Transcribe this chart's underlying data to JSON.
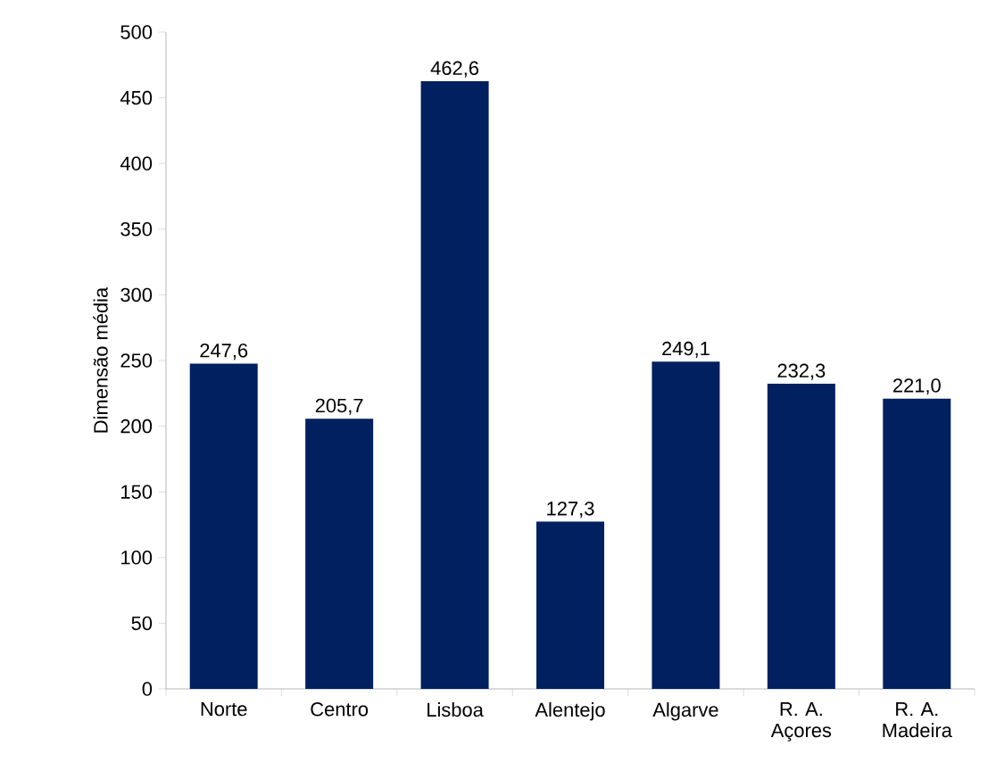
{
  "chart_data": {
    "type": "bar",
    "ylabel": "Dimensão média",
    "categories": [
      "Norte",
      "Centro",
      "Lisboa",
      "Alentejo",
      "Algarve",
      "R. A. Açores",
      "R. A. Madeira"
    ],
    "values": [
      247.6,
      205.7,
      462.6,
      127.3,
      249.1,
      232.3,
      221.0
    ],
    "value_labels": [
      "247,6",
      "205,7",
      "462,6",
      "127,3",
      "249,1",
      "232,3",
      "221,0"
    ],
    "color": "#002060",
    "ylim": [
      0,
      500
    ],
    "yticks": [
      0,
      50,
      100,
      150,
      200,
      250,
      300,
      350,
      400,
      450,
      500
    ],
    "grid": false
  }
}
